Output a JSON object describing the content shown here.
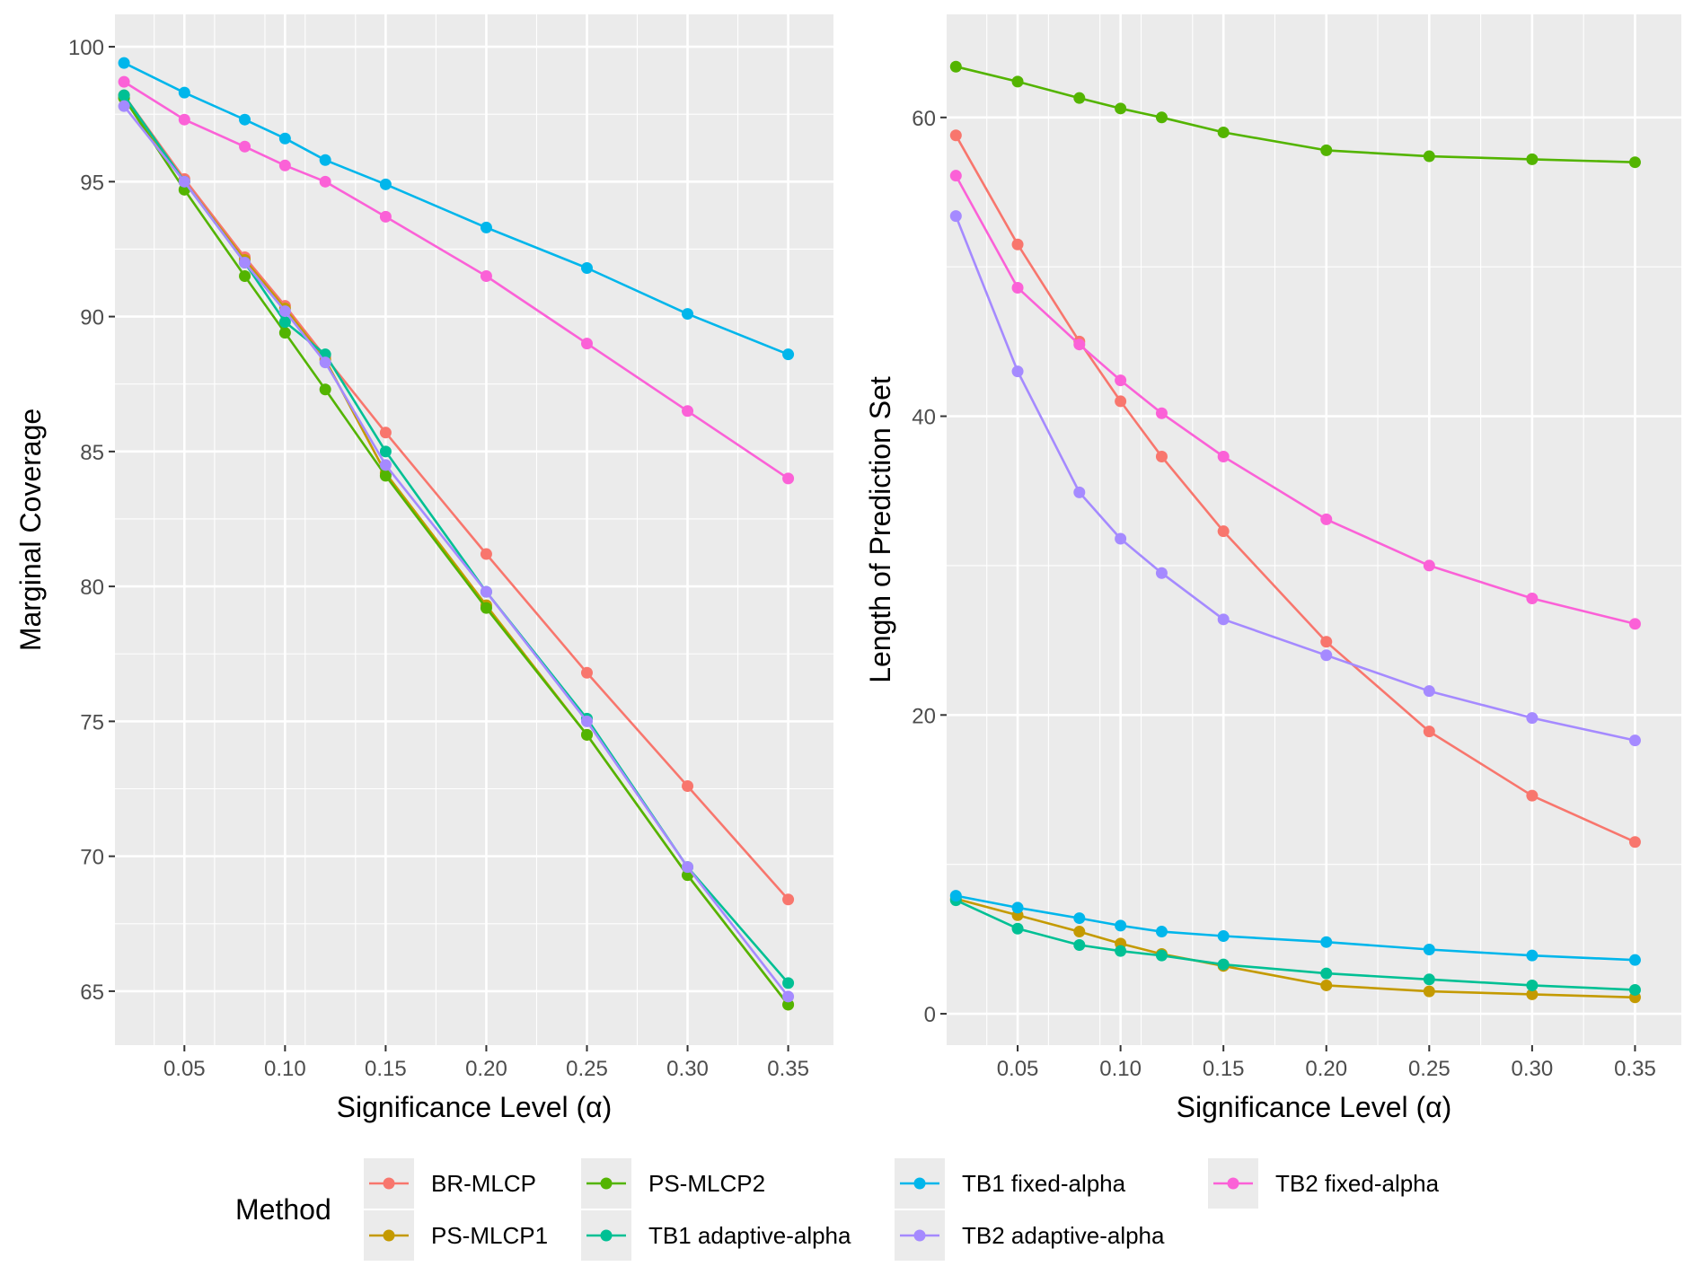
{
  "chart_data": [
    {
      "type": "line",
      "xlabel": "Significance Level (α)",
      "ylabel": "Marginal Coverage",
      "x": [
        0.02,
        0.05,
        0.08,
        0.1,
        0.12,
        0.15,
        0.2,
        0.25,
        0.3,
        0.35
      ],
      "xlim": [
        0.0155,
        0.3725
      ],
      "ylim": [
        63.0,
        101.2
      ],
      "xticks": [
        0.05,
        0.1,
        0.15,
        0.2,
        0.25,
        0.3,
        0.35
      ],
      "xtick_labels": [
        "0.05",
        "0.10",
        "0.15",
        "0.20",
        "0.25",
        "0.30",
        "0.35"
      ],
      "yticks": [
        65,
        70,
        75,
        80,
        85,
        90,
        95,
        100
      ],
      "ytick_labels": [
        "65",
        "70",
        "75",
        "80",
        "85",
        "90",
        "95",
        "100"
      ],
      "series": [
        {
          "name": "BR-MLCP",
          "values": [
            98.2,
            95.1,
            92.2,
            90.4,
            88.5,
            85.7,
            81.2,
            76.8,
            72.6,
            68.4
          ]
        },
        {
          "name": "PS-MLCP1",
          "values": [
            98.1,
            95.0,
            92.1,
            90.3,
            88.4,
            84.2,
            79.3,
            74.5,
            69.3,
            64.5
          ]
        },
        {
          "name": "PS-MLCP2",
          "values": [
            98.1,
            94.7,
            91.5,
            89.4,
            87.3,
            84.1,
            79.2,
            74.5,
            69.3,
            64.5
          ]
        },
        {
          "name": "TB1 adaptive-alpha",
          "values": [
            98.2,
            95.0,
            92.0,
            89.8,
            88.6,
            85.0,
            79.8,
            75.1,
            69.6,
            65.3
          ]
        },
        {
          "name": "TB1 fixed-alpha",
          "values": [
            99.4,
            98.3,
            97.3,
            96.6,
            95.8,
            94.9,
            93.3,
            91.8,
            90.1,
            88.6
          ]
        },
        {
          "name": "TB2 adaptive-alpha",
          "values": [
            97.8,
            95.0,
            92.0,
            90.2,
            88.3,
            84.5,
            79.8,
            75.0,
            69.6,
            64.8
          ]
        },
        {
          "name": "TB2 fixed-alpha",
          "values": [
            98.7,
            97.3,
            96.3,
            95.6,
            95.0,
            93.7,
            91.5,
            89.0,
            86.5,
            84.0
          ]
        }
      ]
    },
    {
      "type": "line",
      "xlabel": "Significance Level (α)",
      "ylabel": "Length of Prediction Set",
      "x": [
        0.02,
        0.05,
        0.08,
        0.1,
        0.12,
        0.15,
        0.2,
        0.25,
        0.3,
        0.35
      ],
      "xlim": [
        0.0155,
        0.3725
      ],
      "ylim": [
        -2.1,
        66.9
      ],
      "xticks": [
        0.05,
        0.1,
        0.15,
        0.2,
        0.25,
        0.3,
        0.35
      ],
      "xtick_labels": [
        "0.05",
        "0.10",
        "0.15",
        "0.20",
        "0.25",
        "0.30",
        "0.35"
      ],
      "yticks": [
        0,
        20,
        40,
        60
      ],
      "ytick_labels": [
        "0",
        "20",
        "40",
        "60"
      ],
      "series": [
        {
          "name": "BR-MLCP",
          "values": [
            58.8,
            51.5,
            45.0,
            41.0,
            37.3,
            32.3,
            24.9,
            18.9,
            14.6,
            11.5
          ]
        },
        {
          "name": "PS-MLCP1",
          "values": [
            7.7,
            6.6,
            5.5,
            4.7,
            4.0,
            3.2,
            1.9,
            1.5,
            1.3,
            1.1
          ]
        },
        {
          "name": "PS-MLCP2",
          "values": [
            63.4,
            62.4,
            61.3,
            60.6,
            60.0,
            59.0,
            57.8,
            57.4,
            57.2,
            57.0
          ]
        },
        {
          "name": "TB1 adaptive-alpha",
          "values": [
            7.6,
            5.7,
            4.6,
            4.2,
            3.9,
            3.3,
            2.7,
            2.3,
            1.9,
            1.6
          ]
        },
        {
          "name": "TB1 fixed-alpha",
          "values": [
            7.9,
            7.1,
            6.4,
            5.9,
            5.5,
            5.2,
            4.8,
            4.3,
            3.9,
            3.6
          ]
        },
        {
          "name": "TB2 adaptive-alpha",
          "values": [
            53.4,
            43.0,
            34.9,
            31.8,
            29.5,
            26.4,
            24.0,
            21.6,
            19.8,
            18.3
          ]
        },
        {
          "name": "TB2 fixed-alpha",
          "values": [
            56.1,
            48.6,
            44.8,
            42.4,
            40.2,
            37.3,
            33.1,
            30.0,
            27.8,
            26.1
          ]
        }
      ]
    }
  ],
  "legend": {
    "title": "Method",
    "entries": [
      {
        "name": "BR-MLCP",
        "color": "#F8766D"
      },
      {
        "name": "PS-MLCP1",
        "color": "#C49A00"
      },
      {
        "name": "PS-MLCP2",
        "color": "#53B400"
      },
      {
        "name": "TB1 adaptive-alpha",
        "color": "#00C094"
      },
      {
        "name": "TB1 fixed-alpha",
        "color": "#00B6EB"
      },
      {
        "name": "TB2 adaptive-alpha",
        "color": "#A58AFF"
      },
      {
        "name": "TB2 fixed-alpha",
        "color": "#FB61D7"
      }
    ]
  }
}
